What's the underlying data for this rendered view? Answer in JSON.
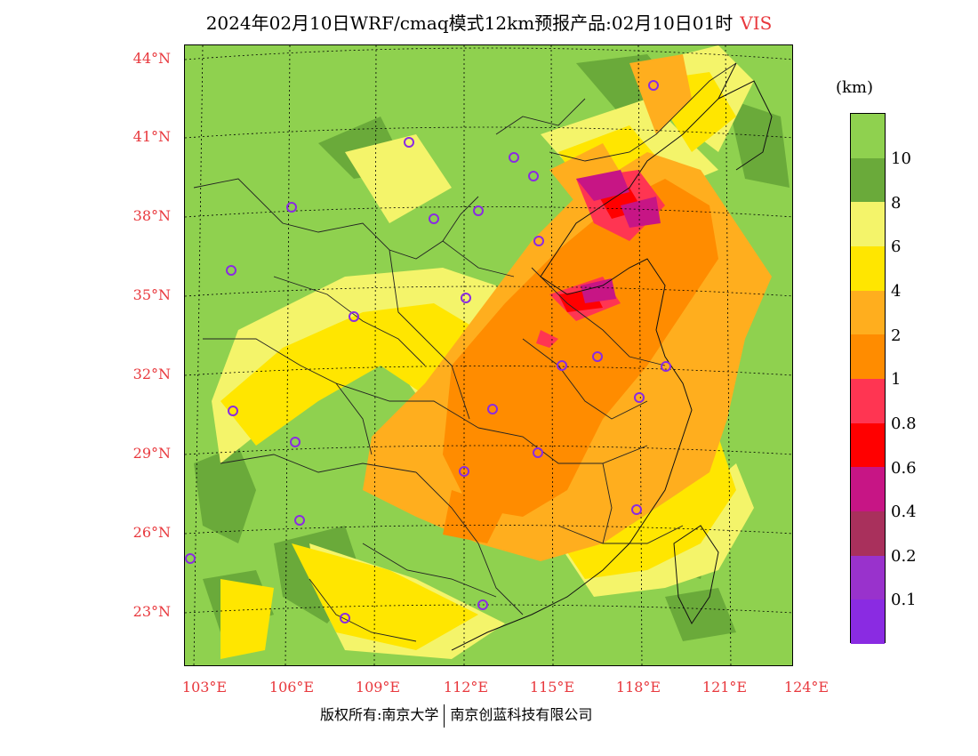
{
  "header": {
    "title": "2024年02月10日WRF/cmaq模式12km预报产品:02月10日01时",
    "variable": "VIS"
  },
  "map": {
    "lat_labels": [
      "44°N",
      "41°N",
      "38°N",
      "35°N",
      "32°N",
      "29°N",
      "26°N",
      "23°N"
    ],
    "lon_labels": [
      "103°E",
      "106°E",
      "109°E",
      "112°E",
      "115°E",
      "118°E",
      "121°E",
      "124°E"
    ],
    "colors": {
      "land_default": "#8fd14f",
      "label_red": "#e8383d",
      "station_circle": "#8a2be2"
    }
  },
  "legend": {
    "unit": "(km)",
    "labels": [
      "10",
      "8",
      "6",
      "4",
      "2",
      "1",
      "0.8",
      "0.6",
      "0.4",
      "0.2",
      "0.1"
    ],
    "colors": [
      "#8fd14f",
      "#6aaa3a",
      "#f4f46a",
      "#ffe600",
      "#ffae1e",
      "#ff8c00",
      "#ff3552",
      "#ff0000",
      "#c71585",
      "#a9305c",
      "#9932cc",
      "#8a2be2"
    ]
  },
  "footer": {
    "left": "版权所有:南京大学",
    "right": "南京创蓝科技有限公司"
  }
}
